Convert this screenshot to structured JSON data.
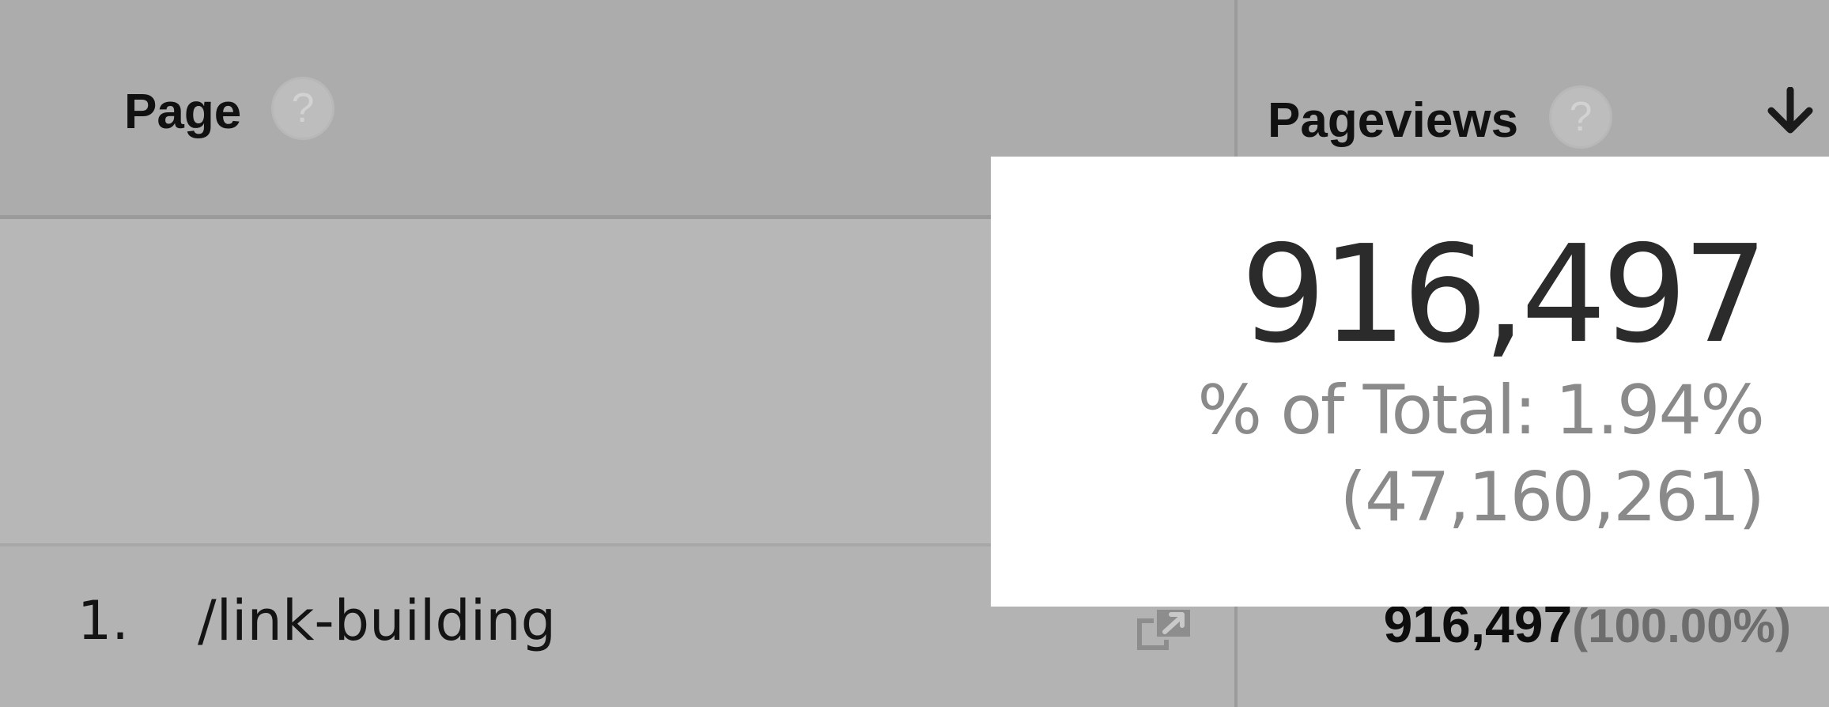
{
  "table": {
    "columns": [
      {
        "label": "Page",
        "help_icon": "question-mark-icon"
      },
      {
        "label": "Pageviews",
        "help_icon": "question-mark-icon",
        "sort_icon": "arrow-down-icon"
      }
    ],
    "rows": [
      {
        "index": "1.",
        "page": "/link-building",
        "action_icon": "open-in-new-window-icon",
        "pageviews": "916,497",
        "pageviews_percent": "(100.00%)"
      }
    ]
  },
  "summary_popup": {
    "total": "916,497",
    "percent_of_total": "% of Total: 1.94%",
    "grand_total": "(47,160,261)"
  },
  "help_glyph": "?",
  "colors": {
    "header_background": "#acacac",
    "row_background": "#b3b3b3",
    "popup_background": "#ffffff",
    "primary_text": "#111111",
    "secondary_text": "#8a8a8a"
  }
}
